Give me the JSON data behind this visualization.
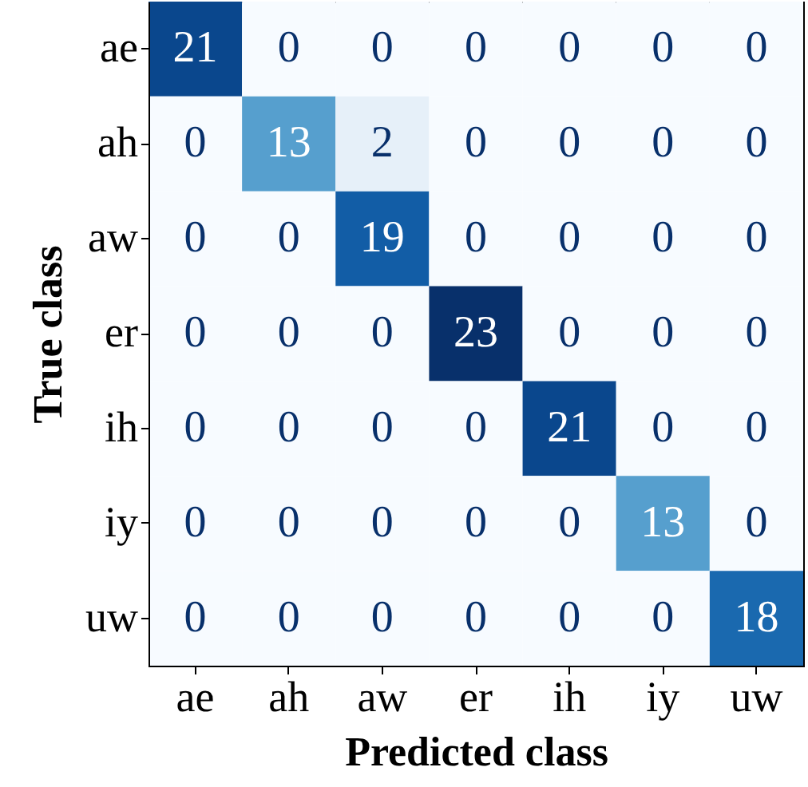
{
  "chart_data": {
    "type": "heatmap",
    "xlabel": "Predicted class",
    "ylabel": "True class",
    "categories": [
      "ae",
      "ah",
      "aw",
      "er",
      "ih",
      "iy",
      "uw"
    ],
    "y_categories": [
      "ae",
      "ah",
      "aw",
      "er",
      "ih",
      "iy",
      "uw"
    ],
    "cells": [
      [
        21,
        0,
        0,
        0,
        0,
        0,
        0
      ],
      [
        0,
        13,
        2,
        0,
        0,
        0,
        0
      ],
      [
        0,
        0,
        19,
        0,
        0,
        0,
        0
      ],
      [
        0,
        0,
        0,
        23,
        0,
        0,
        0
      ],
      [
        0,
        0,
        0,
        0,
        21,
        0,
        0
      ],
      [
        0,
        0,
        0,
        0,
        0,
        13,
        0
      ],
      [
        0,
        0,
        0,
        0,
        0,
        0,
        18
      ]
    ],
    "data_labels": true,
    "grid": false
  }
}
